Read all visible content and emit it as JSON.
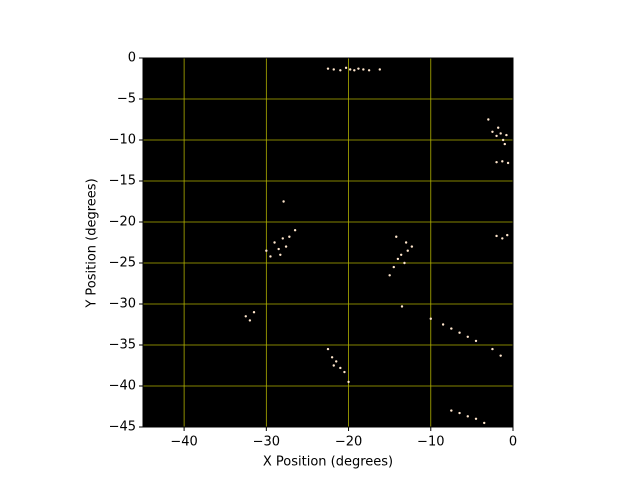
{
  "chart_data": {
    "type": "scatter",
    "xlabel": "X Position (degrees)",
    "ylabel": "Y Position (degrees)",
    "background": "#000000",
    "grid": true,
    "grid_color": "#b0b000",
    "color": "#ffe6cc",
    "xlim": [
      -45,
      0
    ],
    "ylim": [
      -45,
      0
    ],
    "xticks": [
      {
        "value": -40,
        "label": "−40"
      },
      {
        "value": -30,
        "label": "−30"
      },
      {
        "value": -20,
        "label": "−20"
      },
      {
        "value": -10,
        "label": "−10"
      },
      0
    ],
    "yticks": [
      0,
      {
        "value": -5,
        "label": "−5"
      },
      {
        "value": -10,
        "label": "−10"
      },
      {
        "value": -15,
        "label": "−15"
      },
      {
        "value": -20,
        "label": "−20"
      },
      {
        "value": -25,
        "label": "−25"
      },
      {
        "value": -30,
        "label": "−30"
      },
      {
        "value": -35,
        "label": "−35"
      },
      {
        "value": -40,
        "label": "−40"
      },
      {
        "value": -45,
        "label": "−45"
      }
    ],
    "x": [
      -22.5,
      -21.8,
      -21,
      -20.3,
      -19.8,
      -19.3,
      -18.8,
      -18.2,
      -17.5,
      -16.2,
      -2.5,
      -2,
      -1.5,
      -1.2,
      -0.8,
      -1.8,
      -1,
      -3,
      -2,
      -1.3,
      -0.6,
      -29,
      -28.5,
      -28,
      -27.6,
      -27.2,
      -28.3,
      -29.5,
      -26.5,
      -27.9,
      -30,
      -14,
      -13.6,
      -13.2,
      -12.8,
      -14.5,
      -13,
      -12.3,
      -15,
      -14.2,
      -2,
      -1.3,
      -0.7,
      -32.5,
      -32,
      -31.5,
      -10,
      -8.5,
      -7.5,
      -6.5,
      -5.5,
      -4.5,
      -2.5,
      -1.5,
      -22.5,
      -22,
      -21.5,
      -21,
      -20.5,
      -21.8,
      -20,
      -7.5,
      -6.5,
      -5.5,
      -4.5,
      -3.5,
      -13.5
    ],
    "y": [
      -1.3,
      -1.4,
      -1.5,
      -1.2,
      -1.4,
      -1.5,
      -1.3,
      -1.4,
      -1.5,
      -1.4,
      -9,
      -9.5,
      -9.2,
      -10,
      -9.4,
      -8.5,
      -10.5,
      -7.5,
      -12.7,
      -12.6,
      -12.8,
      -22.5,
      -23.3,
      -22,
      -23,
      -21.8,
      -24,
      -24.2,
      -21,
      -17.5,
      -23.5,
      -24.5,
      -24,
      -25,
      -23.5,
      -25.5,
      -22.5,
      -23,
      -26.5,
      -21.8,
      -21.7,
      -22,
      -21.6,
      -31.5,
      -32,
      -31,
      -31.8,
      -32.5,
      -33,
      -33.5,
      -34,
      -34.5,
      -35.5,
      -36.3,
      -35.5,
      -36.5,
      -37,
      -37.8,
      -38.3,
      -37.5,
      -39.5,
      -43,
      -43.3,
      -43.7,
      -44,
      -44.5,
      -30.3
    ]
  }
}
